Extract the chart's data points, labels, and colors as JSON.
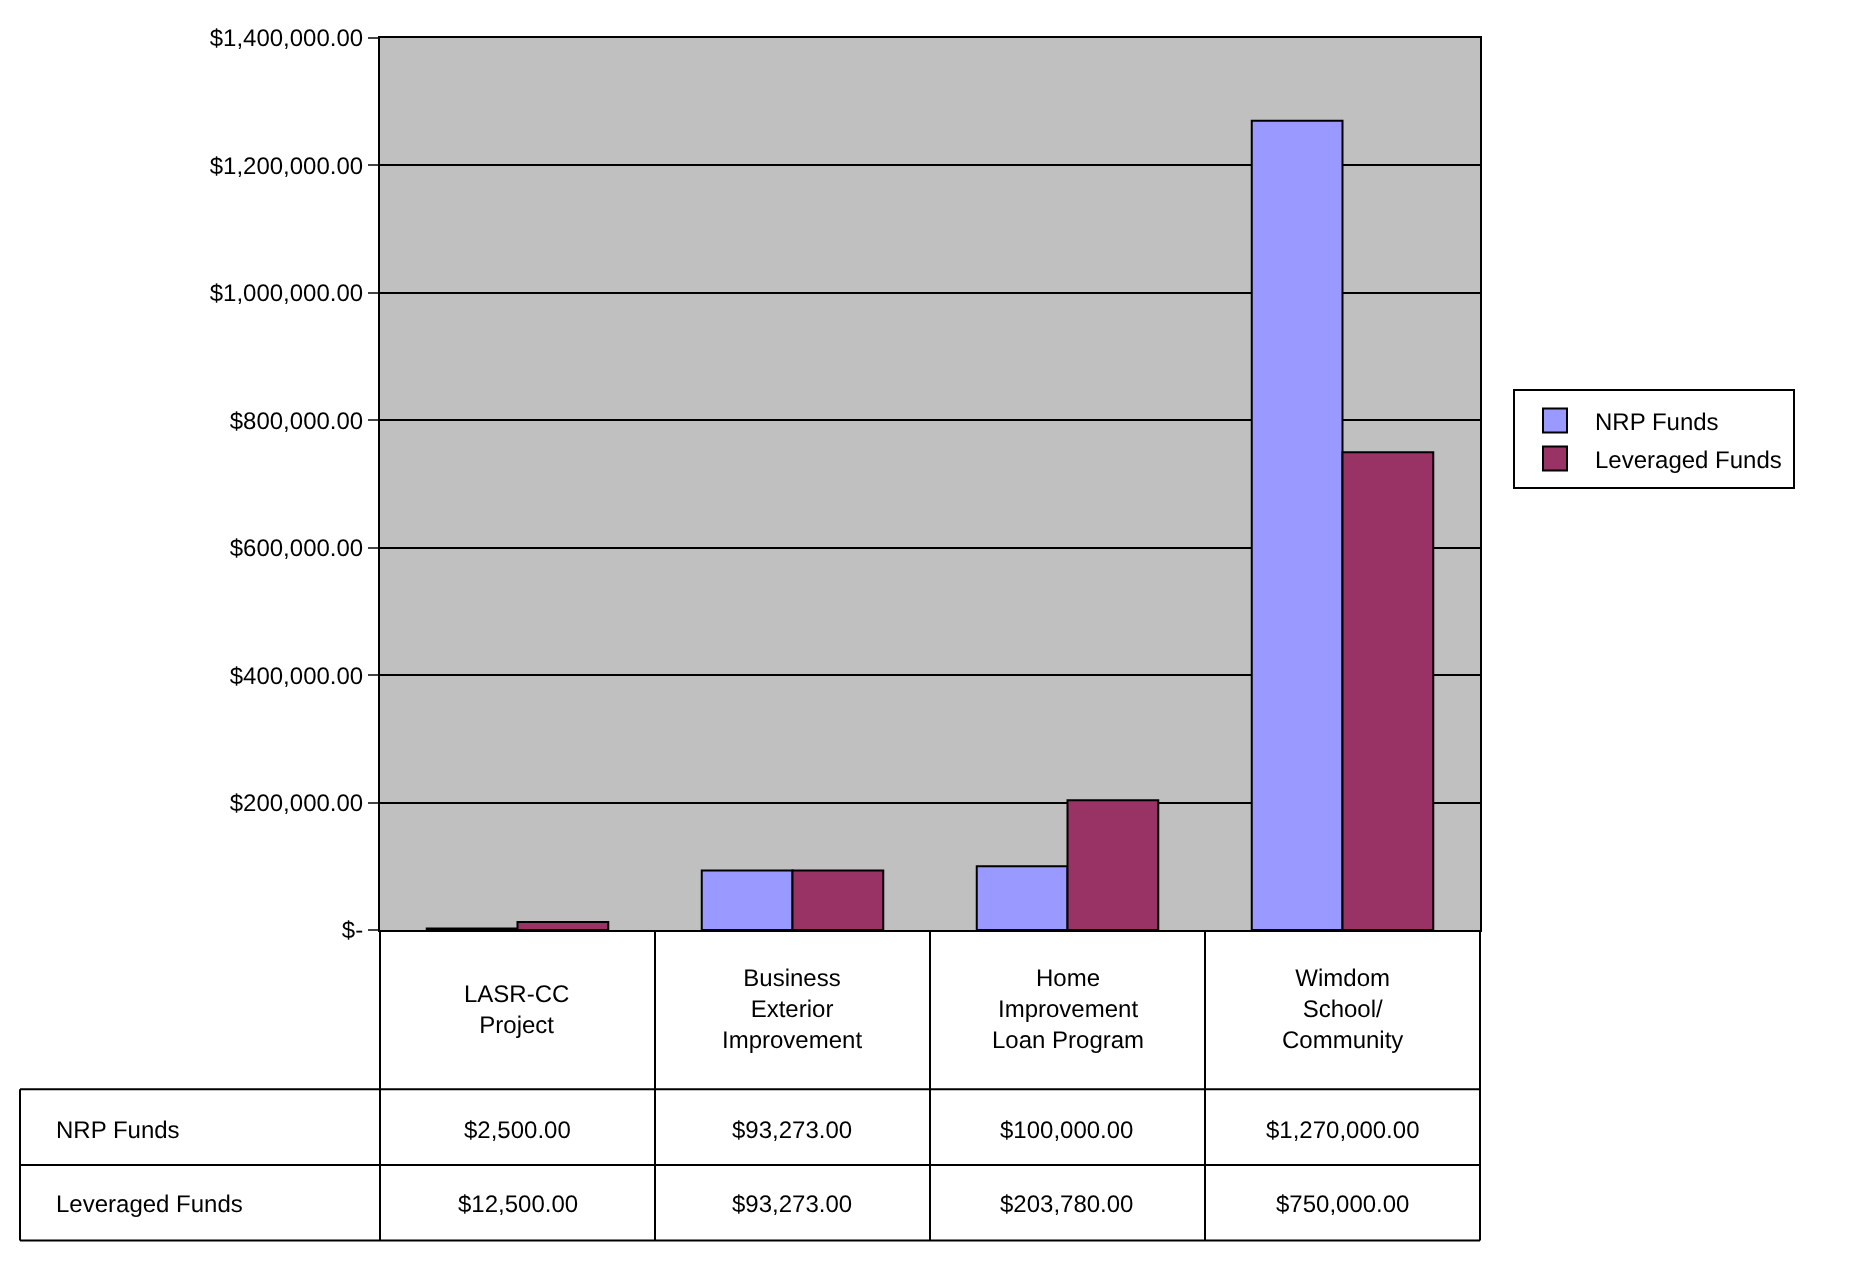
{
  "chart_data": {
    "type": "bar",
    "categories": [
      "LASR-CC Project",
      "Business Exterior Improvement",
      "Home Improvement Loan Program",
      "Wimdom School/ Community"
    ],
    "series": [
      {
        "name": "NRP Funds",
        "color": "#9999ff",
        "values": [
          2500,
          93273,
          100000,
          1270000
        ],
        "value_labels": [
          "$2,500.00",
          "$93,273.00",
          "$100,000.00",
          "$1,270,000.00"
        ]
      },
      {
        "name": "Leveraged Funds",
        "color": "#993366",
        "values": [
          12500,
          93273,
          203780,
          750000
        ],
        "value_labels": [
          "$12,500.00",
          "$93,273.00",
          "$203,780.00",
          "$750,000.00"
        ]
      }
    ],
    "ylim": [
      0,
      1400000
    ],
    "yticks": [
      {
        "value": 0,
        "label": "$-"
      },
      {
        "value": 200000,
        "label": "$200,000.00"
      },
      {
        "value": 400000,
        "label": "$400,000.00"
      },
      {
        "value": 600000,
        "label": "$600,000.00"
      },
      {
        "value": 800000,
        "label": "$800,000.00"
      },
      {
        "value": 1000000,
        "label": "$1,000,000.00"
      },
      {
        "value": 1200000,
        "label": "$1,200,000.00"
      },
      {
        "value": 1400000,
        "label": "$1,400,000.00"
      }
    ],
    "grid": "y",
    "legend": "right"
  }
}
